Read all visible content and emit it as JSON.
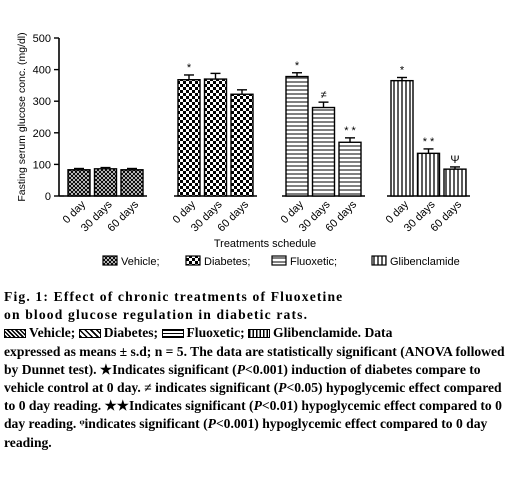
{
  "chart_data": {
    "type": "bar",
    "ylabel": "Fasting serum glucose conc. (mg/dl)",
    "xlabel": "Treatments schedule",
    "ylim": [
      0,
      500
    ],
    "yticks": [
      "0",
      "100",
      "200",
      "300",
      "400",
      "500"
    ],
    "groups": [
      {
        "name": "Vehicle",
        "pattern": "crosshatch",
        "categories": [
          "0 day",
          "30 days",
          "60 days"
        ],
        "values": [
          83,
          86,
          83
        ],
        "errors": [
          4,
          4,
          4
        ],
        "marks": [
          "",
          "",
          ""
        ]
      },
      {
        "name": "Diabetes",
        "pattern": "checker",
        "categories": [
          "0 day",
          "30 days",
          "60 days"
        ],
        "values": [
          368,
          370,
          322
        ],
        "errors": [
          15,
          18,
          14
        ],
        "marks": [
          "*",
          "",
          ""
        ]
      },
      {
        "name": "Fluoxetic",
        "pattern": "horizontal",
        "categories": [
          "0 day",
          "30 days",
          "60 days"
        ],
        "values": [
          378,
          280,
          170
        ],
        "errors": [
          12,
          17,
          14
        ],
        "marks": [
          "*",
          "≠",
          "* *"
        ]
      },
      {
        "name": "Glibenclamide",
        "pattern": "vertical",
        "categories": [
          "0 day",
          "30 days",
          "60 days"
        ],
        "values": [
          365,
          135,
          85
        ],
        "errors": [
          10,
          14,
          7
        ],
        "marks": [
          "*",
          "* *",
          "Ψ"
        ]
      }
    ],
    "legend": [
      "Vehicle;",
      "Diabetes;",
      "Fluoxetic;",
      "Glibenclamide"
    ]
  },
  "caption": {
    "line1": "Fig. 1: Effect of chronic treatments of Fluoxetine",
    "line2": "on blood glucose regulation in diabetic rats.",
    "legend_items": [
      "Vehicle;",
      "Diabetes;",
      "Fluoxetic;",
      "Glibenclamide."
    ],
    "after_legend": "Data",
    "text1": "expressed as means ± s.d; n = 5. The data are statistically significant (ANOVA followed by Dunnet test). ★Indicates significant (",
    "p": "P",
    "text2": "<0.001) induction of diabetes compare to vehicle control at 0 day. ≠ indicates significant (",
    "text3": "<0.05) hypoglycemic effect compared to 0 day reading. ★★Indicates significant (",
    "text4": "<0.01) hypoglycemic effect compared to 0 day reading. ᵠindicates significant (",
    "text5": "<0.001) hypoglycemic effect compared to 0 day reading."
  }
}
